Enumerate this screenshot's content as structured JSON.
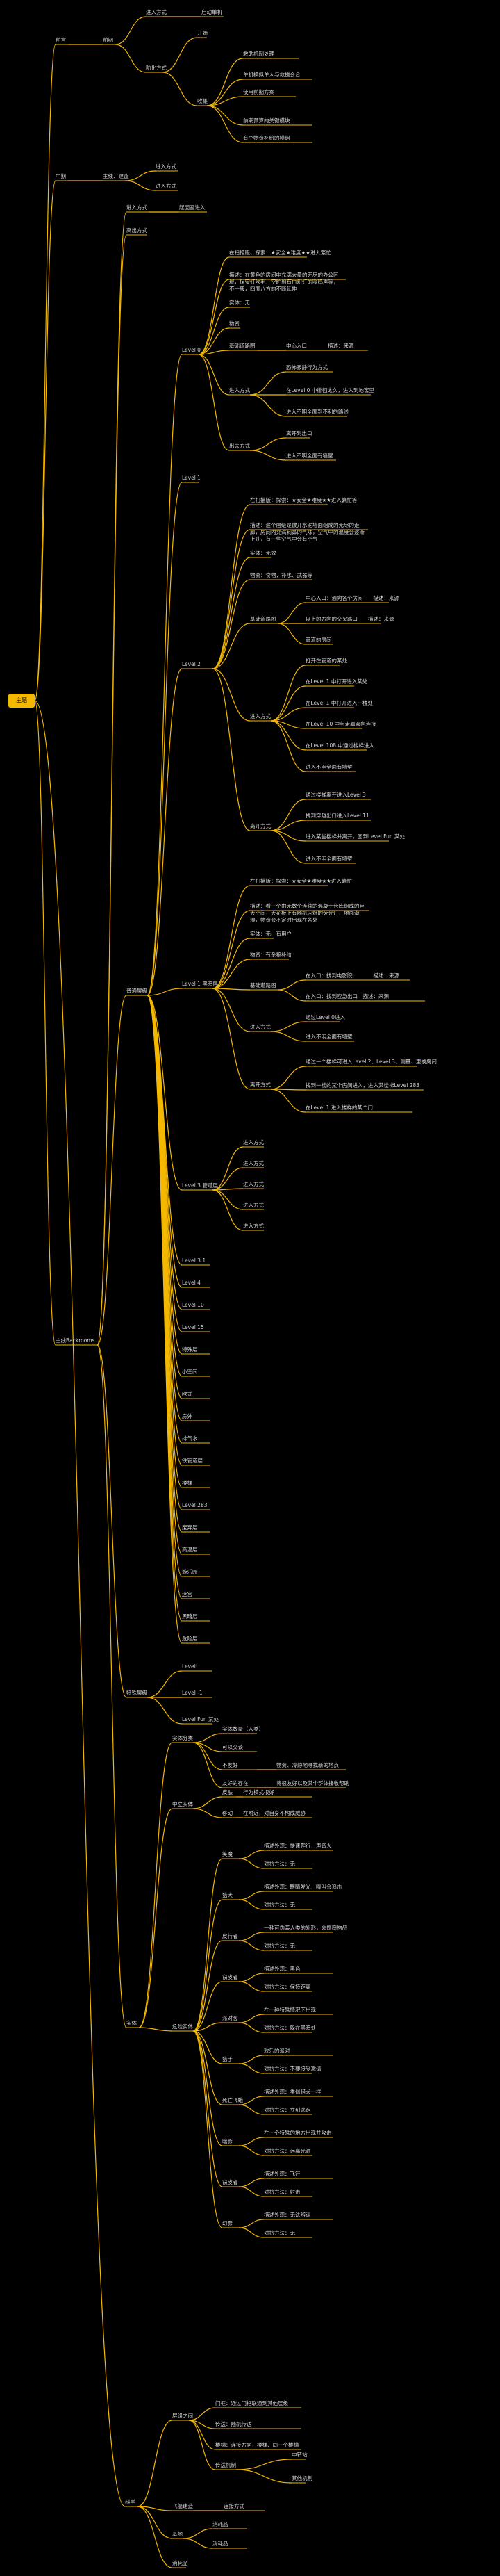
{
  "root": {
    "label": "主题"
  },
  "colors": {
    "background": "#000000",
    "line": "#f5b800",
    "root_fill": "#f5b800",
    "text": "#d4d4d4"
  },
  "nodes": {
    "a1": "前言",
    "a2": "前期",
    "a3": "进入方式",
    "a4": "启动单机",
    "a5": "防化方式",
    "a6": "开始",
    "a7": "收集",
    "a8": "救助机制处理",
    "a9": "单机模拟单人与救援会合",
    "a10": "使用前期方案",
    "a11": "前期预算的关键模块",
    "a12": "有个物资补给的模组",
    "a13": "奖励有一个应对方案",
    "b1": "中期",
    "b2": "主线、建造",
    "b3": "进入方式",
    "b4": "进入方式",
    "c1": "主线Backrooms",
    "c2": "进入方式",
    "c3": "起因室进入",
    "c4": "高出方式",
    "c5": "普通层级",
    "lv0": "Level 0",
    "lv1": "Level 1",
    "lv2": "Level 2",
    "lv3": "Level 3",
    "l0": [
      "在扫描版、探索：★安全★难度★★进入繁忙",
      "描述：在黄色的房间中充满大量的无尽的办公区域，保安灯吹毛，空旷到有白炽灯的嗡鸣声等，不一般，四面八方的不断延伸",
      "实体：无",
      "物资",
      "基础道路图",
      "中心入口",
      "描述：来源",
      "进入方式",
      "恐怖寂静行为方式",
      "在Level 0 中徘徊太久，进入到地窖里",
      "进入不明全面到不利的路线",
      "出去方式",
      "离开到出口",
      "进入不明全面有墙壁"
    ],
    "l2": [
      "在扫描版：探索：★安全★难度★★进入繁忙等",
      "描述：这个层级是被开水泥墙面组成的无尽的走廊，房间内充满刺鼻的气味，空气中的温度会逐渐上升，有一些空气中会有空气",
      "实体：无效",
      "物资：食物，补水、武器等",
      "基础道路图",
      "中心入口：通向各个房间",
      "描述：来源",
      "以上的方向的交叉路口",
      "描述：来源",
      "管道的房间",
      "进入方式",
      "打开在管道的某处",
      "在Level 1 中打开进入某处",
      "在Level 1 中打开进入一楼处",
      "在Level 10 中与走廊双向连接",
      "在Level 108 中通过楼梯进入",
      "进入不明全面有墙壁",
      "离开方式",
      "通过楼梯离开进入Level 3",
      "找到穿越出口进入Level 11",
      "进入某些楼梯并离开，回到Level Fun 某处",
      "进入不明全面有墙壁"
    ],
    "l1": [
      "在扫描版：探索：★安全★难度★★进入繁忙",
      "描述：看一个由无数个连续的混凝土仓库组成的巨大空间，天花板上有随机闪烁的荧光灯，地面潮湿，物资会不定时出现在各处",
      "实体：无、有用户",
      "物资：有杂粮补给",
      "基础道路图",
      "在入口：找到电影院",
      "描述：来源",
      "在入口：找到应急出口",
      "描述：来源",
      "进入方式",
      "通过Level 0进入",
      "进入不明全面有墙壁",
      "离开方式",
      "通过一个楼梯可进入Level 2、Level 3、测量、更换房间",
      "找到一楼的某个房间进入，进入某楼梯Level 283",
      "在Level 1 进入楼梯的某个门"
    ],
    "l3": [
      "进入方式",
      "进入方式",
      "进入方式",
      "进入方式",
      "进入方式"
    ],
    "levels": [
      "Level 3.1",
      "Level 4",
      "Level 10",
      "Level 15",
      "特殊层",
      "小空间",
      "欧式",
      "房外",
      "排气水",
      "铁管道层",
      "楼梯",
      "Level 283",
      "废弃层",
      "高温层",
      "游乐园",
      "迷宫",
      "黑暗层",
      "危险层"
    ],
    "c6": "特殊层级",
    "special": [
      "Level!",
      "Level -1",
      "Level Fun 某处"
    ],
    "c7": "实体",
    "e_group1": "实体分类",
    "e1": [
      "实体数量（人类）",
      "可以交谈",
      "不友好",
      "友好的存在"
    ],
    "e1b": [
      "",
      "",
      "物资、冷静地寻找新的地点",
      "将很友好以及某个群体接收帮助"
    ],
    "e_group2": "中立实体",
    "e2": [
      "皮肤",
      "移动"
    ],
    "e2b": [
      "行为模式很好",
      "在附近，对自身不构成威胁"
    ],
    "e_group3": "危险实体",
    "e3": [
      "笑魔",
      "猎犬",
      "皮行者",
      "窃皮者",
      "派对客",
      "猎手",
      "死亡飞蛾",
      "暗影",
      "窃皮者",
      "幻影"
    ],
    "e3b": [
      "描述外观：快速爬行，声音大",
      "对抗方法：无",
      "描述外观：眼睛发光，嚎叫会追击",
      "对抗方法：无",
      "一种可伪装人类的外形，会偷窃物品",
      "对抗方法：无",
      "描述外观：黑色",
      "对抗方法：保持距离",
      "在一种特殊情况下出现",
      "对抗方法：躲在黑暗处",
      "欢乐的派对",
      "对抗方法：不要接受邀请",
      "描述外观：类似猎犬一样",
      "对抗方法：立刻逃跑",
      "在一个特殊的地方出现并攻击",
      "对抗方法：远离光源",
      "描述外观：飞行",
      "对抗方法：射击",
      "描述外观：无法辨认",
      "对抗方法：无"
    ],
    "c8": "科学",
    "f1": "层组之间",
    "f1a": [
      "门框：通过门框联通到其他层级",
      "传送：随机传送",
      "楼梯：连接方向，楼梯、同一个楼梯"
    ],
    "f2": "传送机制",
    "f3": [
      "中转站",
      "其他机制"
    ],
    "f4": "飞船建造",
    "f5": "连接方式",
    "f6": "基地",
    "f7": "消耗品"
  }
}
